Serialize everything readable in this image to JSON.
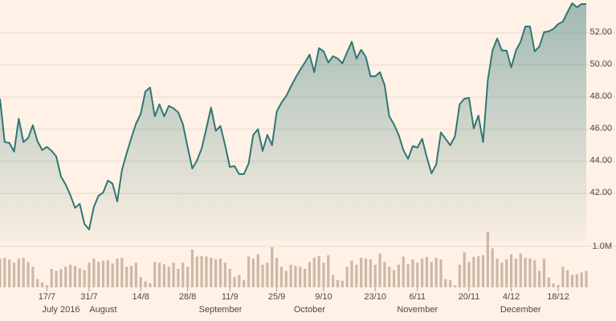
{
  "chart_data": {
    "type": "line",
    "color": "#2f7776",
    "grid": true,
    "ylim": [
      39.05,
      54.05
    ],
    "yticks": [
      {
        "value": 42,
        "label": "42.00"
      },
      {
        "value": 44,
        "label": "44.00"
      },
      {
        "value": 46,
        "label": "46.00"
      },
      {
        "value": 48,
        "label": "48.00"
      },
      {
        "value": 50,
        "label": "50.00"
      },
      {
        "value": 52,
        "label": "52.00"
      }
    ],
    "categories": [
      null,
      null,
      null,
      null,
      null,
      null,
      null,
      null,
      null,
      null,
      "17/7",
      null,
      null,
      null,
      null,
      null,
      null,
      null,
      null,
      "31/7",
      null,
      null,
      null,
      null,
      null,
      null,
      null,
      null,
      null,
      null,
      "14/8",
      null,
      null,
      null,
      null,
      null,
      null,
      null,
      null,
      null,
      "28/8",
      null,
      null,
      null,
      null,
      null,
      null,
      null,
      null,
      "11/9",
      null,
      null,
      null,
      null,
      null,
      null,
      null,
      null,
      null,
      "25/9",
      null,
      null,
      null,
      null,
      null,
      null,
      null,
      null,
      null,
      "9/10",
      null,
      null,
      null,
      null,
      null,
      null,
      null,
      null,
      null,
      null,
      "23/10",
      null,
      null,
      null,
      null,
      null,
      null,
      null,
      null,
      "6/11",
      null,
      null,
      null,
      null,
      null,
      null,
      null,
      null,
      null,
      null,
      "20/11",
      null,
      null,
      null,
      null,
      null,
      null,
      null,
      null,
      "4/12",
      null,
      null,
      null,
      null,
      null,
      null,
      null,
      null,
      null,
      "18/12",
      null,
      null,
      null,
      null,
      null,
      null
    ],
    "months": [
      null,
      null,
      null,
      null,
      null,
      null,
      null,
      null,
      null,
      null,
      null,
      null,
      null,
      "July 2016",
      null,
      null,
      null,
      null,
      null,
      null,
      null,
      null,
      "August",
      null,
      null,
      null,
      null,
      null,
      null,
      null,
      null,
      null,
      null,
      null,
      null,
      null,
      null,
      null,
      null,
      null,
      null,
      null,
      null,
      null,
      null,
      null,
      null,
      "September",
      null,
      null,
      null,
      null,
      null,
      null,
      null,
      null,
      null,
      null,
      null,
      null,
      null,
      null,
      null,
      null,
      null,
      null,
      "October",
      null,
      null,
      null,
      null,
      null,
      null,
      null,
      null,
      null,
      null,
      null,
      null,
      null,
      null,
      null,
      null,
      null,
      null,
      null,
      null,
      null,
      null,
      "November",
      null,
      null,
      null,
      null,
      null,
      null,
      null,
      null,
      null,
      null,
      null,
      null,
      null,
      null,
      null,
      null,
      null,
      null,
      null,
      null,
      null,
      "December",
      null,
      null,
      null,
      null,
      null,
      null,
      null,
      null,
      null,
      null,
      null,
      null,
      null,
      null
    ],
    "values": [
      47.9,
      45.2,
      45.15,
      44.6,
      46.65,
      45.2,
      45.45,
      46.25,
      45.25,
      44.7,
      44.9,
      44.65,
      44.3,
      43.05,
      42.55,
      41.9,
      41.1,
      41.35,
      40.1,
      39.75,
      41.15,
      41.85,
      42.05,
      42.8,
      42.6,
      41.5,
      43.45,
      44.5,
      45.45,
      46.35,
      46.95,
      48.35,
      48.6,
      46.8,
      47.55,
      46.8,
      47.45,
      47.3,
      47.05,
      46.3,
      44.9,
      43.55,
      44.05,
      44.8,
      46.05,
      47.35,
      45.9,
      46.2,
      45.0,
      43.65,
      43.7,
      43.2,
      43.2,
      43.85,
      45.65,
      46.0,
      44.65,
      45.65,
      45.0,
      47.1,
      47.65,
      48.05,
      48.65,
      49.2,
      49.7,
      50.15,
      50.65,
      49.55,
      51.05,
      50.85,
      50.15,
      50.55,
      50.4,
      50.1,
      50.8,
      51.45,
      50.4,
      50.95,
      50.5,
      49.3,
      49.3,
      49.55,
      48.75,
      46.8,
      46.3,
      45.65,
      44.7,
      44.15,
      44.95,
      44.85,
      45.4,
      44.25,
      43.25,
      43.8,
      45.8,
      45.4,
      45.0,
      45.55,
      47.55,
      47.9,
      47.95,
      46.05,
      46.85,
      45.2,
      49.05,
      50.9,
      51.65,
      50.9,
      50.9,
      49.85,
      50.9,
      51.45,
      52.4,
      52.4,
      50.85,
      51.15,
      52.05,
      52.1,
      52.25,
      52.55,
      52.7,
      53.3,
      53.85,
      53.6,
      53.8,
      53.8
    ],
    "volume": {
      "color": "#cdb8a6",
      "ylim": [
        0,
        1.33
      ],
      "yticks": [
        {
          "value": 1.0,
          "label": "1.0M"
        }
      ],
      "values": [
        0.7,
        0.72,
        0.68,
        0.6,
        0.7,
        0.72,
        0.62,
        0.5,
        0.2,
        0.12,
        0.05,
        0.45,
        0.4,
        0.44,
        0.5,
        0.55,
        0.52,
        0.46,
        0.42,
        0.6,
        0.7,
        0.62,
        0.65,
        0.66,
        0.58,
        0.7,
        0.72,
        0.5,
        0.52,
        0.6,
        0.25,
        0.15,
        0.1,
        0.62,
        0.6,
        0.56,
        0.5,
        0.6,
        0.45,
        0.6,
        0.5,
        0.92,
        0.75,
        0.76,
        0.75,
        0.72,
        0.68,
        0.7,
        0.6,
        0.45,
        0.25,
        0.3,
        0.18,
        0.75,
        0.7,
        0.8,
        0.55,
        0.6,
        0.98,
        0.72,
        0.5,
        0.4,
        0.55,
        0.52,
        0.5,
        0.45,
        0.62,
        0.72,
        0.76,
        0.6,
        0.78,
        0.3,
        0.18,
        0.16,
        0.5,
        0.65,
        0.55,
        0.72,
        0.7,
        0.68,
        0.55,
        0.82,
        0.62,
        0.5,
        0.42,
        0.55,
        0.75,
        0.56,
        0.68,
        0.6,
        0.7,
        0.74,
        0.62,
        0.72,
        0.68,
        0.2,
        0.18,
        0.05,
        0.55,
        0.85,
        0.62,
        0.74,
        0.76,
        0.78,
        1.35,
        0.95,
        0.7,
        0.6,
        0.68,
        0.8,
        0.7,
        0.82,
        0.72,
        0.7,
        0.66,
        0.4,
        0.7,
        0.24,
        0.1,
        0.06,
        0.5,
        0.42,
        0.3,
        0.32,
        0.36,
        0.4
      ]
    }
  }
}
